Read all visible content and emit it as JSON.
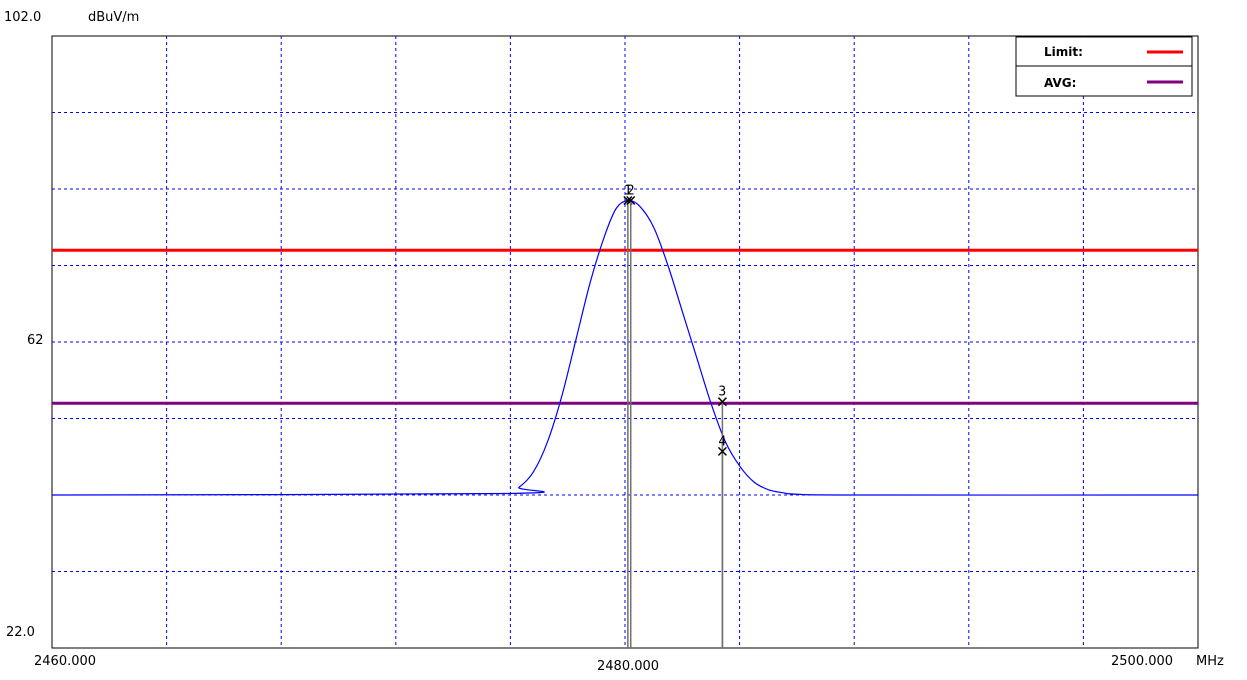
{
  "chart_data": {
    "type": "line",
    "y_unit": "dBuV/m",
    "x_unit": "MHz",
    "xlim": [
      2460.0,
      2500.0
    ],
    "ylim": [
      22.0,
      102.0
    ],
    "x_tick_labels": [
      "2460.000",
      "2480.000",
      "2500.000"
    ],
    "y_tick_labels": [
      "102.0",
      "62",
      "22.0"
    ],
    "grid": true,
    "grid_divisions": {
      "x": 10,
      "y": 8
    },
    "legend": {
      "placement": "top-right",
      "items": [
        {
          "label": "Limit:",
          "color": "#ff0000"
        },
        {
          "label": "AVG:",
          "color": "#800080"
        }
      ]
    },
    "limit_lines": [
      {
        "label": "Limit:",
        "y": 74.0,
        "color": "#ff0000"
      },
      {
        "label": "AVG:",
        "y": 54.0,
        "color": "#800080"
      }
    ],
    "series": [
      {
        "color": "#0000ff",
        "x": [
          2460.0,
          2475.9,
          2476.3,
          2476.8,
          2477.3,
          2477.8,
          2478.3,
          2478.8,
          2479.3,
          2479.7,
          2480.1,
          2480.5,
          2481.0,
          2481.5,
          2482.0,
          2482.5,
          2483.0,
          2483.5,
          2484.0,
          2484.5,
          2485.0,
          2485.5,
          2486.0,
          2488.0,
          2500.0
        ],
        "y": [
          42.0,
          42.2,
          43.0,
          45.0,
          49.0,
          55.0,
          62.5,
          70.0,
          76.0,
          79.5,
          80.5,
          79.8,
          77.0,
          72.0,
          66.0,
          60.0,
          54.0,
          49.0,
          45.8,
          43.7,
          42.7,
          42.3,
          42.1,
          42.0,
          42.0
        ]
      }
    ],
    "markers": [
      {
        "label": "1",
        "x": 2480.1,
        "y": 80.5
      },
      {
        "label": "2",
        "x": 2480.2,
        "y": 80.5
      },
      {
        "label": "3",
        "x": 2483.4,
        "y": 54.2
      },
      {
        "label": "4",
        "x": 2483.4,
        "y": 47.7
      }
    ]
  }
}
